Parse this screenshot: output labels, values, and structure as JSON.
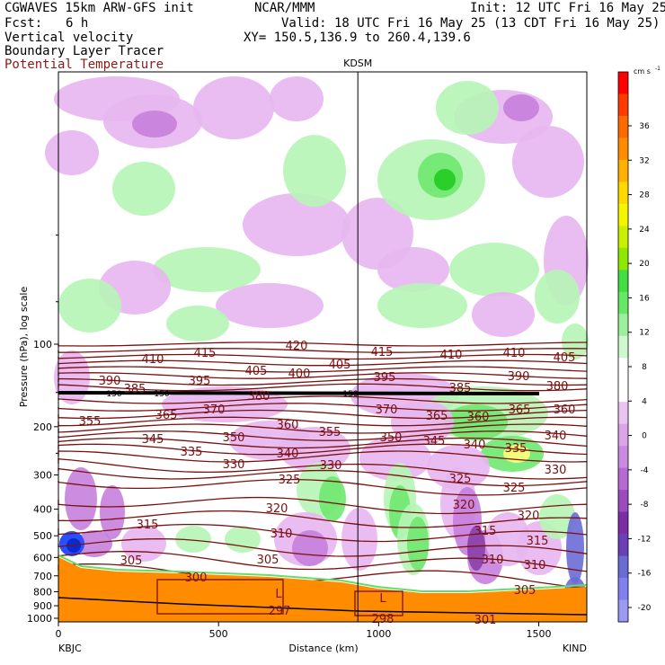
{
  "header": {
    "title": "CGWAVES 15km ARW-GFS init",
    "org": "NCAR/MMM",
    "init": "Init: 12 UTC Fri 16 May 25",
    "fcst_label": "Fcst:",
    "fcst_value": "6 h",
    "valid": "Valid: 18 UTC Fri 16 May 25 (13 CDT Fri 16 May 25)",
    "field1": "Vertical velocity",
    "field2": "Boundary Layer Tracer",
    "field3": "Potential Temperature",
    "xy": "XY= 150.5,136.9 to 260.4,139.6"
  },
  "colors": {
    "theta": "#7a1010",
    "terrain": "#ff8c00",
    "up_light": "#b6f5b6",
    "up_mid": "#6ee86e",
    "up_strong": "#22cc22",
    "down_light": "#e7b6ef",
    "down_mid": "#c77fdc",
    "down_strong": "#8a3fa8"
  },
  "chart_data": {
    "type": "heatmap",
    "marker_label": "KDSM",
    "xlabel": "Distance (km)",
    "ylabel": "Pressure (hPa), log scale",
    "xlim": [
      0,
      1650
    ],
    "x_ticks": [
      "0",
      "500",
      "1000",
      "1500"
    ],
    "y_ticks": [
      "100",
      "200",
      "300",
      "400",
      "500",
      "600",
      "700",
      "800",
      "900",
      "1000"
    ],
    "left_station": "KBJC",
    "right_station": "KIND",
    "marker_x": 935,
    "colorbar": {
      "unit": "cm s",
      "unit_exp": "-1",
      "labels": [
        "36",
        "32",
        "28",
        "24",
        "20",
        "16",
        "12",
        "8",
        "4",
        "0",
        "-4",
        "-8",
        "-12",
        "-16",
        "-20"
      ],
      "colors": [
        "#ff0000",
        "#ff3a00",
        "#ff6a00",
        "#ff8c00",
        "#ffb000",
        "#ffd800",
        "#f5f500",
        "#c8f000",
        "#8ee800",
        "#44dd44",
        "#66e866",
        "#9cf09c",
        "#cdf7cd",
        "#ffffff",
        "#ffffff",
        "#e9c4f0",
        "#dba4ea",
        "#c98ae0",
        "#b56ad2",
        "#9b4bbf",
        "#7a2da4",
        "#6a3fb8",
        "#6b6bd6",
        "#8080ee",
        "#9a9af5"
      ]
    },
    "theta_labels": [
      "420",
      "415",
      "410",
      "405",
      "400",
      "395",
      "390",
      "385",
      "380",
      "370",
      "365",
      "360",
      "355",
      "350",
      "345",
      "340",
      "335",
      "330",
      "325",
      "320",
      "315",
      "310",
      "305",
      "300",
      "297",
      "298",
      "301"
    ],
    "tracer_label": "L",
    "tracer_levels": [
      "150"
    ]
  }
}
